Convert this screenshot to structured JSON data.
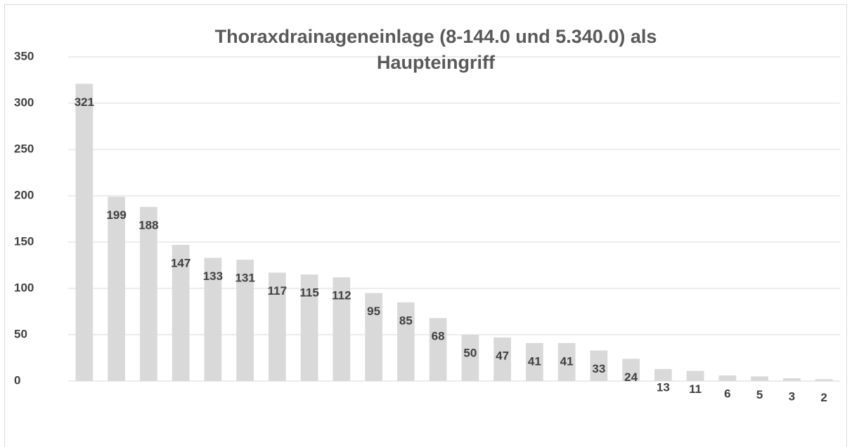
{
  "chart_data": {
    "type": "bar",
    "title": "Thoraxdrainageneinlage (8-144.0 und 5.340.0) als Haupteingriff",
    "categories": [
      null,
      null,
      null,
      null,
      null,
      null,
      null,
      null,
      null,
      null,
      null,
      null,
      null,
      null,
      null,
      null,
      null,
      null,
      null,
      null,
      null,
      null,
      null,
      null
    ],
    "values": [
      321,
      199,
      188,
      147,
      133,
      131,
      117,
      115,
      112,
      95,
      85,
      68,
      50,
      47,
      41,
      41,
      33,
      24,
      13,
      11,
      6,
      5,
      3,
      2
    ],
    "color": "#d9d9d9",
    "ylim": [
      0,
      350
    ],
    "yticks": [
      0,
      50,
      100,
      150,
      200,
      250,
      300,
      350
    ],
    "grid": true
  }
}
